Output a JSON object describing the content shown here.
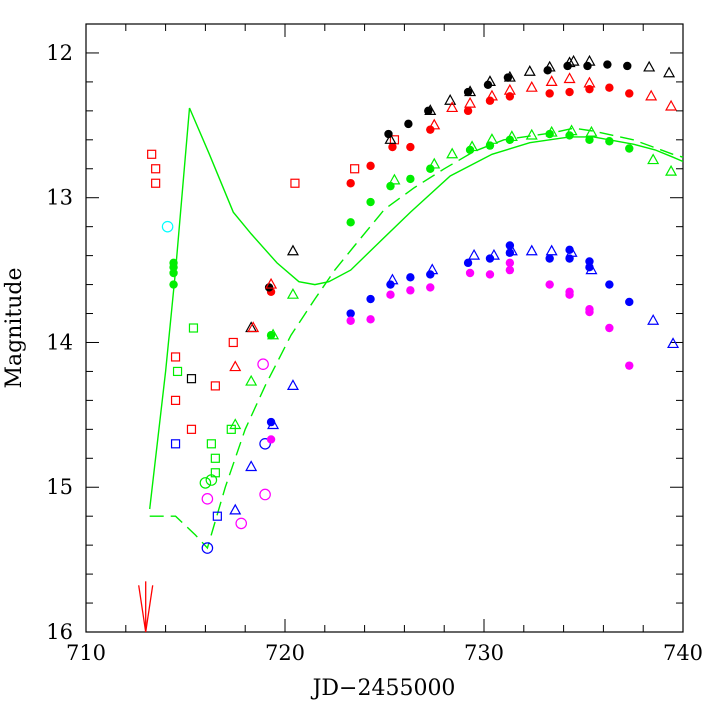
{
  "chart_data": {
    "type": "scatter",
    "xlabel": "JD−2455000",
    "ylabel": "Magnitude",
    "xlim": [
      710,
      740
    ],
    "ylim": [
      16,
      11.8
    ],
    "y_inverted": true,
    "x_ticks": [
      710,
      720,
      730,
      740
    ],
    "y_ticks": [
      12,
      13,
      14,
      15,
      16
    ],
    "x_tick_labels": [
      "710",
      "720",
      "730",
      "740"
    ],
    "y_tick_labels": [
      "12",
      "13",
      "14",
      "15",
      "16"
    ],
    "grid": false,
    "legend": "none",
    "arrow": {
      "x": 713.0,
      "y_from": 15.65,
      "y_to": 16.0,
      "color": "#ff0000"
    },
    "series": [
      {
        "marker": "open-square",
        "color": "#ff0000",
        "x": [
          713.3,
          713.5,
          713.5,
          714.5,
          714.5,
          715.3,
          716.5,
          717.4,
          720.5,
          723.5,
          725.5
        ],
        "y": [
          12.7,
          12.8,
          12.9,
          14.1,
          14.4,
          14.6,
          14.3,
          14.0,
          12.9,
          12.8,
          12.6
        ]
      },
      {
        "marker": "open-square",
        "color": "#00ee00",
        "x": [
          714.6,
          715.4,
          716.3,
          716.5,
          716.5,
          717.3
        ],
        "y": [
          14.2,
          13.9,
          14.7,
          14.8,
          14.9,
          14.6
        ]
      },
      {
        "marker": "open-square",
        "color": "#000000",
        "x": [
          715.3
        ],
        "y": [
          14.25
        ]
      },
      {
        "marker": "open-square",
        "color": "#0000ff",
        "x": [
          714.5,
          716.6
        ],
        "y": [
          14.7,
          15.2
        ]
      },
      {
        "marker": "open-circle",
        "color": "#00ffff",
        "x": [
          714.1
        ],
        "y": [
          13.2
        ]
      },
      {
        "marker": "open-circle",
        "color": "#00ee00",
        "x": [
          716.0,
          716.3
        ],
        "y": [
          14.97,
          14.95
        ]
      },
      {
        "marker": "open-circle",
        "color": "#ff00ff",
        "x": [
          716.1,
          717.8,
          719.0,
          718.9
        ],
        "y": [
          15.08,
          15.25,
          15.05,
          14.15
        ]
      },
      {
        "marker": "open-circle",
        "color": "#0000ff",
        "x": [
          716.1,
          719.0
        ],
        "y": [
          15.42,
          14.7
        ]
      },
      {
        "marker": "filled-circle",
        "color": "#00ee00",
        "x": [
          714.4,
          714.4,
          714.4,
          714.4,
          719.3,
          723.3,
          724.3,
          725.3,
          726.3,
          727.3,
          729.3,
          730.3,
          731.3,
          733.3,
          734.3,
          735.3,
          736.3,
          737.3
        ],
        "y": [
          13.45,
          13.48,
          13.52,
          13.6,
          13.95,
          13.17,
          13.03,
          12.92,
          12.87,
          12.8,
          12.67,
          12.64,
          12.6,
          12.56,
          12.57,
          12.6,
          12.61,
          12.66
        ]
      },
      {
        "marker": "filled-circle",
        "color": "#ff0000",
        "x": [
          719.3,
          723.3,
          724.3,
          725.4,
          726.3,
          727.3,
          729.2,
          730.3,
          731.3,
          733.3,
          734.3,
          735.3,
          736.3,
          737.3
        ],
        "y": [
          13.65,
          12.9,
          12.78,
          12.65,
          12.65,
          12.53,
          12.4,
          12.33,
          12.3,
          12.28,
          12.27,
          12.25,
          12.24,
          12.28
        ]
      },
      {
        "marker": "filled-circle",
        "color": "#000000",
        "x": [
          719.2,
          725.2,
          726.2,
          727.2,
          729.2,
          730.2,
          731.2,
          733.2,
          734.2,
          735.2,
          736.2,
          737.2
        ],
        "y": [
          13.62,
          12.56,
          12.49,
          12.4,
          12.27,
          12.22,
          12.17,
          12.12,
          12.09,
          12.09,
          12.08,
          12.09
        ]
      },
      {
        "marker": "filled-circle",
        "color": "#0000ff",
        "x": [
          719.3,
          723.3,
          724.3,
          725.3,
          726.3,
          727.3,
          729.2,
          730.3,
          731.3,
          731.3,
          733.3,
          734.3,
          734.3,
          735.3,
          735.3,
          736.3,
          737.3
        ],
        "y": [
          14.55,
          13.8,
          13.7,
          13.6,
          13.55,
          13.53,
          13.45,
          13.42,
          13.33,
          13.38,
          13.42,
          13.36,
          13.42,
          13.44,
          13.48,
          13.6,
          13.72
        ]
      },
      {
        "marker": "filled-circle",
        "color": "#ff00ff",
        "x": [
          719.3,
          723.3,
          724.3,
          725.3,
          726.3,
          727.3,
          729.3,
          730.3,
          731.3,
          731.3,
          733.3,
          734.3,
          734.3,
          735.3,
          735.3,
          736.3,
          737.3
        ],
        "y": [
          14.67,
          13.85,
          13.84,
          13.67,
          13.64,
          13.62,
          13.52,
          13.53,
          13.5,
          13.45,
          13.6,
          13.65,
          13.67,
          13.77,
          13.79,
          13.9,
          14.16
        ]
      },
      {
        "marker": "open-triangle",
        "color": "#000000",
        "x": [
          718.3,
          720.4,
          725.3,
          727.3,
          728.3,
          729.3,
          730.3,
          731.3,
          732.3,
          733.3,
          734.3,
          734.5,
          735.3,
          738.3,
          739.3
        ],
        "y": [
          13.9,
          13.37,
          12.6,
          12.4,
          12.33,
          12.27,
          12.2,
          12.17,
          12.13,
          12.1,
          12.07,
          12.06,
          12.06,
          12.1,
          12.14
        ]
      },
      {
        "marker": "open-triangle",
        "color": "#ff0000",
        "x": [
          717.5,
          718.4,
          719.3,
          727.5,
          728.4,
          729.3,
          730.4,
          731.3,
          732.4,
          733.4,
          734.3,
          735.3,
          738.4,
          739.4
        ],
        "y": [
          14.17,
          13.9,
          13.6,
          12.5,
          12.38,
          12.35,
          12.3,
          12.26,
          12.24,
          12.2,
          12.18,
          12.21,
          12.3,
          12.37
        ]
      },
      {
        "marker": "open-triangle",
        "color": "#00ee00",
        "x": [
          717.5,
          718.3,
          719.4,
          720.4,
          725.5,
          727.5,
          728.4,
          729.4,
          730.4,
          731.4,
          732.4,
          733.4,
          734.4,
          735.4,
          738.5,
          739.4
        ],
        "y": [
          14.57,
          14.27,
          13.95,
          13.67,
          12.88,
          12.77,
          12.7,
          12.65,
          12.6,
          12.58,
          12.57,
          12.55,
          12.54,
          12.55,
          12.74,
          12.82
        ]
      },
      {
        "marker": "open-triangle",
        "color": "#0000ff",
        "x": [
          717.5,
          718.3,
          719.4,
          720.4,
          725.4,
          727.4,
          729.5,
          730.5,
          731.4,
          732.4,
          733.4,
          734.4,
          735.4,
          738.5,
          739.5
        ],
        "y": [
          15.16,
          14.86,
          14.57,
          14.3,
          13.57,
          13.5,
          13.4,
          13.4,
          13.37,
          13.37,
          13.37,
          13.38,
          13.5,
          13.85,
          14.01
        ]
      }
    ],
    "curves": [
      {
        "style": "solid",
        "color": "#00ee00",
        "x": [
          713.2,
          714.0,
          714.5,
          715.2,
          716.2,
          717.4,
          718.3,
          719.6,
          720.7,
          721.5,
          722.2,
          723.3,
          724.8,
          726.3,
          728.3,
          730.4,
          732.3,
          734.3,
          735.5,
          737.5,
          738.6,
          739.5,
          740.0
        ],
        "y": [
          15.15,
          14.2,
          13.5,
          12.38,
          12.7,
          13.1,
          13.25,
          13.45,
          13.58,
          13.6,
          13.58,
          13.5,
          13.3,
          13.1,
          12.85,
          12.7,
          12.62,
          12.58,
          12.58,
          12.63,
          12.67,
          12.72,
          12.75
        ]
      },
      {
        "style": "dashed",
        "color": "#00ee00",
        "x": [
          713.2,
          714.5,
          715.5,
          716.1,
          717.0,
          718.0,
          719.0,
          720.3,
          721.5,
          722.5,
          723.5,
          725.0,
          726.5,
          728.0,
          729.5,
          731.0,
          732.5,
          733.5,
          734.5,
          735.5,
          736.5,
          737.5,
          738.5,
          739.5,
          740.0
        ],
        "y": [
          15.2,
          15.2,
          15.33,
          15.42,
          15.0,
          14.6,
          14.3,
          13.95,
          13.7,
          13.5,
          13.33,
          13.08,
          12.93,
          12.8,
          12.68,
          12.6,
          12.57,
          12.55,
          12.52,
          12.54,
          12.57,
          12.6,
          12.65,
          12.7,
          12.72
        ]
      }
    ]
  }
}
